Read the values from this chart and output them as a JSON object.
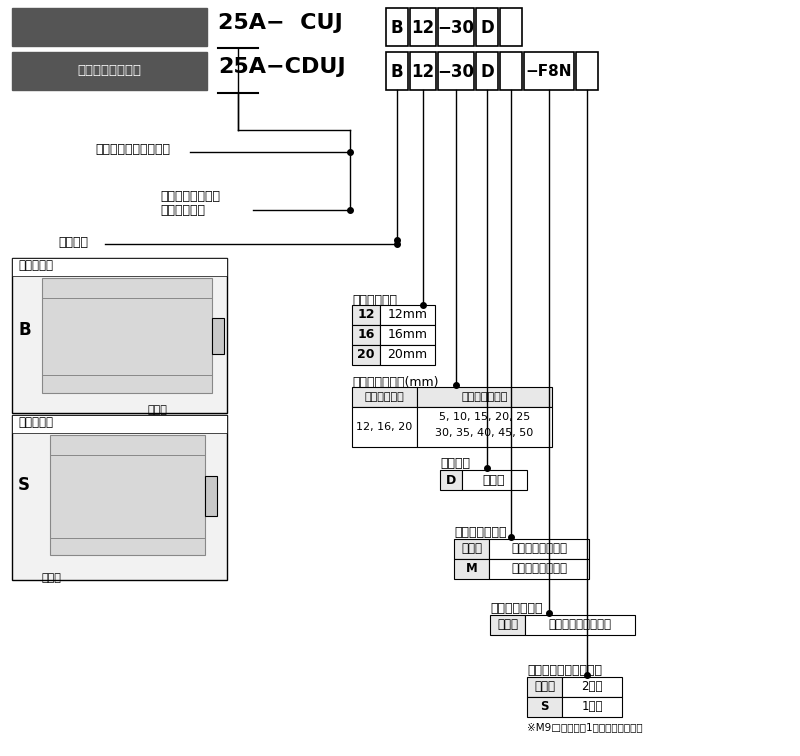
{
  "bg_color": "#ffffff",
  "gray_box_color": "#555555",
  "light_gray": "#e8e8e8",
  "row1_title": "25A-  CUJ",
  "row2_title": "25A-CDUJ",
  "auto_switch_label": "オートスイッチ付",
  "label_rechargeable": "二次電池対応シリーズ",
  "label_autoswitch_magnet": "オートスイッチ付",
  "label_autoswitch_magnet2": "（磁石内蔵）",
  "label_mount": "取付方向",
  "label_B_mount": "横方向取付",
  "label_S_mount": "軸方向取付",
  "label_B": "B",
  "label_S": "S",
  "label_countersink": "座くり",
  "label_tube_bore": "チューブ内径",
  "tube_bore_data": [
    [
      "12",
      "12mm"
    ],
    [
      "16",
      "16mm"
    ],
    [
      "20",
      "20mm"
    ]
  ],
  "label_stroke": "標準ストローク(mm)",
  "stroke_col1_header": "チューブ内径",
  "stroke_col2_header": "標準ストローク",
  "stroke_col1_data": "12, 16, 20",
  "stroke_col2_data_line1": "5, 10, 15, 20, 25",
  "stroke_col2_data_line2": "30, 35, 40, 45, 50",
  "label_action": "作動方式",
  "action_code": "D",
  "action_desc": "複動形",
  "label_rod_tip": "ロッド先端ねじ",
  "rod_tip_data": [
    [
      "無記号",
      "ロッド先端めねじ"
    ],
    [
      "M",
      "ロッド先端おねじ"
    ]
  ],
  "label_autoswitch2": "オートスイッチ",
  "autoswitch_data": [
    [
      "無記号",
      "オートスイッチなし"
    ]
  ],
  "label_autoswitch_suffix": "オートスイッチ追記号",
  "autoswitch_suffix_data": [
    [
      "無記号",
      "2ヶ付"
    ],
    [
      "S",
      "1ヶ付"
    ]
  ],
  "note": "※M9□の場合は1ヶ付となります。"
}
